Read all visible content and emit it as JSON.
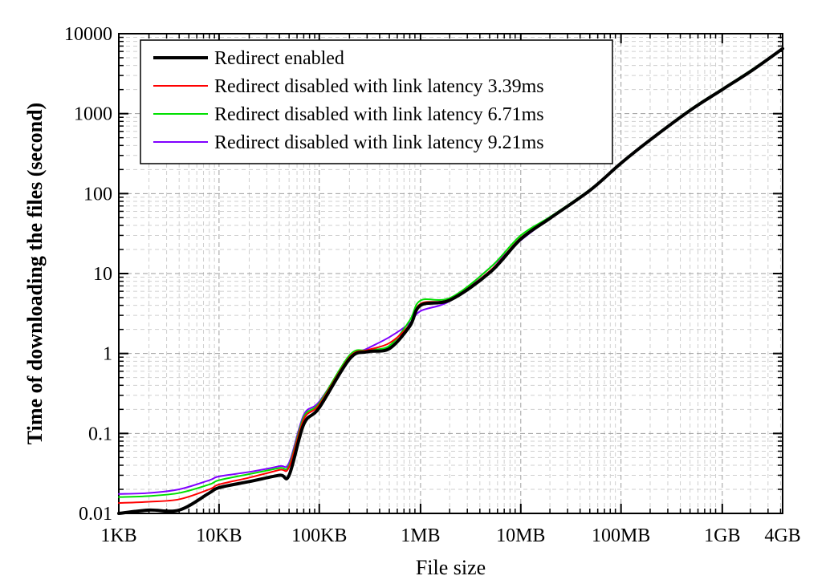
{
  "chart_data": {
    "type": "line",
    "title": "",
    "xlabel": "File size",
    "ylabel": "Time of downloading the files (second)",
    "x_scale": "log",
    "y_scale": "log",
    "x_unit": "bytes",
    "xlim": [
      1024,
      4294967296
    ],
    "ylim": [
      0.01,
      10000
    ],
    "grid": true,
    "legend_position": "top-left",
    "x_ticks": [
      {
        "value": 1024,
        "label": "1KB"
      },
      {
        "value": 10240,
        "label": "10KB"
      },
      {
        "value": 102400,
        "label": "100KB"
      },
      {
        "value": 1048576,
        "label": "1MB"
      },
      {
        "value": 10485760,
        "label": "10MB"
      },
      {
        "value": 104857600,
        "label": "100MB"
      },
      {
        "value": 1073741824,
        "label": "1GB"
      },
      {
        "value": 4294967296,
        "label": "4GB"
      }
    ],
    "y_ticks": [
      {
        "value": 0.01,
        "label": "0.01"
      },
      {
        "value": 0.1,
        "label": "0.1"
      },
      {
        "value": 1,
        "label": "1"
      },
      {
        "value": 10,
        "label": "10"
      },
      {
        "value": 100,
        "label": "100"
      },
      {
        "value": 1000,
        "label": "1000"
      },
      {
        "value": 10000,
        "label": "10000"
      }
    ],
    "x": [
      1024,
      2048,
      4096,
      8192,
      10240,
      20480,
      40960,
      51200,
      71680,
      102400,
      204800,
      307200,
      512000,
      819200,
      1048576,
      2097152,
      5242880,
      10485760,
      20971520,
      52428800,
      104857600,
      209715200,
      524288000,
      1073741824,
      2147483648,
      4294967296
    ],
    "series": [
      {
        "name": "Redirect enabled",
        "color": "#000000",
        "width": 4,
        "values": [
          0.01,
          0.011,
          0.011,
          0.018,
          0.021,
          0.025,
          0.03,
          0.03,
          0.13,
          0.21,
          0.85,
          1.05,
          1.15,
          2.2,
          4.0,
          4.7,
          10.5,
          27,
          50,
          112,
          240,
          480,
          1120,
          2000,
          3500,
          6500
        ]
      },
      {
        "name": "Redirect disabled with link latency 3.39ms",
        "color": "#ff0000",
        "width": 2,
        "values": [
          0.0135,
          0.014,
          0.015,
          0.02,
          0.023,
          0.028,
          0.035,
          0.038,
          0.15,
          0.23,
          0.9,
          1.1,
          1.35,
          2.3,
          4.2,
          4.8,
          11,
          28,
          50,
          112,
          240,
          480,
          1120,
          2000,
          3500,
          6500
        ]
      },
      {
        "name": "Redirect disabled with link latency 6.71ms",
        "color": "#00e000",
        "width": 2,
        "values": [
          0.016,
          0.0165,
          0.018,
          0.023,
          0.026,
          0.031,
          0.037,
          0.04,
          0.16,
          0.24,
          0.95,
          1.1,
          1.25,
          2.6,
          4.6,
          5.0,
          12,
          30,
          52,
          115,
          245,
          490,
          1150,
          2050,
          3600,
          6600
        ]
      },
      {
        "name": "Redirect disabled with link latency 9.21ms",
        "color": "#8000ff",
        "width": 2,
        "values": [
          0.0175,
          0.018,
          0.02,
          0.026,
          0.029,
          0.033,
          0.039,
          0.043,
          0.17,
          0.25,
          0.88,
          1.15,
          1.6,
          2.4,
          3.4,
          4.6,
          12,
          26,
          50,
          110,
          240,
          480,
          1120,
          2000,
          3500,
          6500
        ]
      }
    ]
  }
}
